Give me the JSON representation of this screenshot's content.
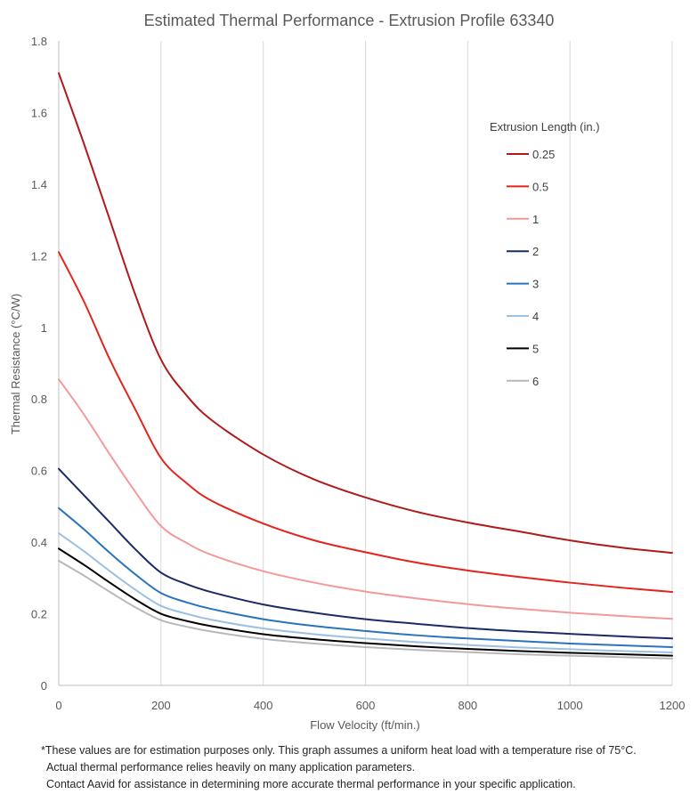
{
  "chart_data": {
    "type": "line",
    "title": "Estimated Thermal Performance - Extrusion Profile 63340",
    "xlabel": "Flow Velocity (ft/min.)",
    "ylabel": "Thermal Resistance (°C/W)",
    "xlim": [
      0,
      1200
    ],
    "ylim": [
      0,
      1.8
    ],
    "x_ticks": [
      "0",
      "200",
      "400",
      "600",
      "800",
      "1000",
      "1200"
    ],
    "y_ticks": [
      "0",
      "0.2",
      "0.4",
      "0.6",
      "0.8",
      "1",
      "1.2",
      "1.4",
      "1.6",
      "1.8"
    ],
    "grid": "vertical",
    "legend_title": "Extrusion Length (in.)",
    "legend_position": "right",
    "series": [
      {
        "name": "0.25",
        "color": "#b01a1a",
        "points": [
          [
            0,
            1.71
          ],
          [
            50,
            1.51
          ],
          [
            100,
            1.3
          ],
          [
            150,
            1.09
          ],
          [
            200,
            0.91
          ],
          [
            250,
            0.81
          ],
          [
            300,
            0.74
          ],
          [
            400,
            0.645
          ],
          [
            500,
            0.575
          ],
          [
            600,
            0.525
          ],
          [
            700,
            0.485
          ],
          [
            800,
            0.455
          ],
          [
            900,
            0.43
          ],
          [
            1000,
            0.405
          ],
          [
            1100,
            0.385
          ],
          [
            1200,
            0.37
          ]
        ]
      },
      {
        "name": "0.5",
        "color": "#e3241c",
        "points": [
          [
            0,
            1.21
          ],
          [
            50,
            1.07
          ],
          [
            100,
            0.91
          ],
          [
            150,
            0.77
          ],
          [
            200,
            0.635
          ],
          [
            250,
            0.565
          ],
          [
            300,
            0.515
          ],
          [
            400,
            0.452
          ],
          [
            500,
            0.405
          ],
          [
            600,
            0.372
          ],
          [
            700,
            0.343
          ],
          [
            800,
            0.321
          ],
          [
            900,
            0.303
          ],
          [
            1000,
            0.287
          ],
          [
            1100,
            0.273
          ],
          [
            1200,
            0.261
          ]
        ]
      },
      {
        "name": "1",
        "color": "#f4999b",
        "points": [
          [
            0,
            0.855
          ],
          [
            50,
            0.755
          ],
          [
            100,
            0.645
          ],
          [
            150,
            0.54
          ],
          [
            200,
            0.445
          ],
          [
            250,
            0.398
          ],
          [
            300,
            0.364
          ],
          [
            400,
            0.319
          ],
          [
            500,
            0.287
          ],
          [
            600,
            0.262
          ],
          [
            700,
            0.243
          ],
          [
            800,
            0.227
          ],
          [
            900,
            0.214
          ],
          [
            1000,
            0.203
          ],
          [
            1100,
            0.194
          ],
          [
            1200,
            0.186
          ]
        ]
      },
      {
        "name": "2",
        "color": "#1b2b66",
        "points": [
          [
            0,
            0.605
          ],
          [
            50,
            0.53
          ],
          [
            100,
            0.455
          ],
          [
            150,
            0.38
          ],
          [
            200,
            0.315
          ],
          [
            250,
            0.283
          ],
          [
            300,
            0.26
          ],
          [
            400,
            0.226
          ],
          [
            500,
            0.203
          ],
          [
            600,
            0.185
          ],
          [
            700,
            0.172
          ],
          [
            800,
            0.16
          ],
          [
            900,
            0.151
          ],
          [
            1000,
            0.144
          ],
          [
            1100,
            0.137
          ],
          [
            1200,
            0.131
          ]
        ]
      },
      {
        "name": "3",
        "color": "#2a73bd",
        "points": [
          [
            0,
            0.495
          ],
          [
            50,
            0.435
          ],
          [
            100,
            0.37
          ],
          [
            150,
            0.31
          ],
          [
            200,
            0.258
          ],
          [
            250,
            0.232
          ],
          [
            300,
            0.213
          ],
          [
            400,
            0.185
          ],
          [
            500,
            0.166
          ],
          [
            600,
            0.152
          ],
          [
            700,
            0.14
          ],
          [
            800,
            0.131
          ],
          [
            900,
            0.124
          ],
          [
            1000,
            0.117
          ],
          [
            1100,
            0.112
          ],
          [
            1200,
            0.107
          ]
        ]
      },
      {
        "name": "4",
        "color": "#9cc0e2",
        "points": [
          [
            0,
            0.425
          ],
          [
            50,
            0.374
          ],
          [
            100,
            0.319
          ],
          [
            150,
            0.267
          ],
          [
            200,
            0.222
          ],
          [
            250,
            0.2
          ],
          [
            300,
            0.183
          ],
          [
            400,
            0.159
          ],
          [
            500,
            0.143
          ],
          [
            600,
            0.131
          ],
          [
            700,
            0.121
          ],
          [
            800,
            0.113
          ],
          [
            900,
            0.106
          ],
          [
            1000,
            0.101
          ],
          [
            1100,
            0.096
          ],
          [
            1200,
            0.092
          ]
        ]
      },
      {
        "name": "5",
        "color": "#000000",
        "points": [
          [
            0,
            0.382
          ],
          [
            50,
            0.336
          ],
          [
            100,
            0.287
          ],
          [
            150,
            0.24
          ],
          [
            200,
            0.2
          ],
          [
            250,
            0.18
          ],
          [
            300,
            0.165
          ],
          [
            400,
            0.143
          ],
          [
            500,
            0.129
          ],
          [
            600,
            0.118
          ],
          [
            700,
            0.109
          ],
          [
            800,
            0.102
          ],
          [
            900,
            0.096
          ],
          [
            1000,
            0.091
          ],
          [
            1100,
            0.087
          ],
          [
            1200,
            0.083
          ]
        ]
      },
      {
        "name": "6",
        "color": "#b8b8b8",
        "points": [
          [
            0,
            0.348
          ],
          [
            50,
            0.306
          ],
          [
            100,
            0.261
          ],
          [
            150,
            0.218
          ],
          [
            200,
            0.182
          ],
          [
            250,
            0.164
          ],
          [
            300,
            0.15
          ],
          [
            400,
            0.13
          ],
          [
            500,
            0.117
          ],
          [
            600,
            0.107
          ],
          [
            700,
            0.099
          ],
          [
            800,
            0.093
          ],
          [
            900,
            0.087
          ],
          [
            1000,
            0.083
          ],
          [
            1100,
            0.079
          ],
          [
            1200,
            0.075
          ]
        ]
      }
    ]
  },
  "notes": {
    "line1": "*These values are for estimation purposes only. This graph assumes a uniform heat load with a temperature rise of 75°C.",
    "line2": "Actual thermal performance relies heavily on many application parameters.",
    "line3": "Contact Aavid for assistance in determining more accurate thermal performance in your specific application."
  }
}
